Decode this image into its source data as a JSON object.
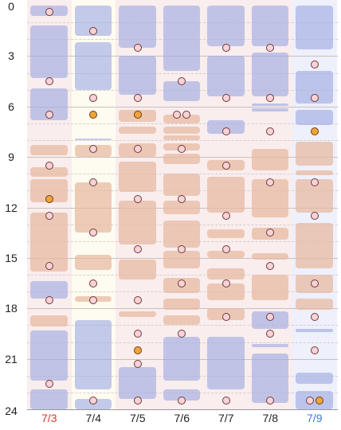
{
  "y_axis": {
    "min": 0,
    "max": 24,
    "labels": [
      "0",
      "3",
      "6",
      "9",
      "12",
      "15",
      "18",
      "21",
      "24"
    ]
  },
  "days": [
    {
      "label": "7/3",
      "color": "#d9362b",
      "shade": "#f9eded",
      "blocks": [
        {
          "s": 0.0,
          "e": 0.6,
          "c": "blue"
        },
        {
          "s": 1.2,
          "e": 4.3,
          "c": "blue"
        },
        {
          "s": 4.9,
          "e": 6.8,
          "c": "blue"
        },
        {
          "s": 8.3,
          "e": 8.9,
          "c": "peach"
        },
        {
          "s": 9.6,
          "e": 10.2,
          "c": "peach"
        },
        {
          "s": 10.3,
          "e": 11.7,
          "c": "peach"
        },
        {
          "s": 12.3,
          "e": 15.8,
          "c": "peach"
        },
        {
          "s": 16.4,
          "e": 17.4,
          "c": "blue"
        },
        {
          "s": 18.4,
          "e": 19.1,
          "c": "peach"
        },
        {
          "s": 19.3,
          "e": 22.3,
          "c": "blue"
        },
        {
          "s": 22.8,
          "e": 24.0,
          "c": "blue"
        }
      ],
      "markers": [
        {
          "v": 0.4,
          "c": "pink"
        },
        {
          "v": 4.5,
          "c": "pink"
        },
        {
          "v": 6.5,
          "c": "pink"
        },
        {
          "v": 9.5,
          "c": "pink"
        },
        {
          "v": 11.5,
          "c": "orange"
        },
        {
          "v": 12.5,
          "c": "pink"
        },
        {
          "v": 15.5,
          "c": "pink"
        },
        {
          "v": 17.5,
          "c": "pink"
        },
        {
          "v": 22.5,
          "c": "pink"
        }
      ]
    },
    {
      "label": "7/4",
      "color": "#222222",
      "shade": "#fefbf1",
      "blocks": [
        {
          "s": 0.0,
          "e": 1.8,
          "c": "blue"
        },
        {
          "s": 2.2,
          "e": 5.0,
          "c": "blue"
        },
        {
          "s": 7.9,
          "e": 8.0,
          "c": "blue"
        },
        {
          "s": 8.3,
          "e": 9.0,
          "c": "peach"
        },
        {
          "s": 10.5,
          "e": 13.5,
          "c": "peach"
        },
        {
          "s": 14.8,
          "e": 15.7,
          "c": "peach"
        },
        {
          "s": 17.3,
          "e": 17.6,
          "c": "peach"
        },
        {
          "s": 18.7,
          "e": 22.8,
          "c": "blue"
        },
        {
          "s": 23.4,
          "e": 24.0,
          "c": "blue"
        }
      ],
      "markers": [
        {
          "v": 1.5,
          "c": "pink"
        },
        {
          "v": 5.5,
          "c": "pink"
        },
        {
          "v": 6.5,
          "c": "orange"
        },
        {
          "v": 8.5,
          "c": "pink"
        },
        {
          "v": 10.5,
          "c": "pink"
        },
        {
          "v": 13.5,
          "c": "pink"
        },
        {
          "v": 16.5,
          "c": "pink"
        },
        {
          "v": 17.5,
          "c": "pink"
        },
        {
          "v": 23.5,
          "c": "pink"
        }
      ]
    },
    {
      "label": "7/5",
      "color": "#222222",
      "shade": "#f9eded",
      "blocks": [
        {
          "s": 0.0,
          "e": 2.5,
          "c": "blue"
        },
        {
          "s": 3.0,
          "e": 5.3,
          "c": "blue"
        },
        {
          "s": 6.2,
          "e": 6.9,
          "c": "peach"
        },
        {
          "s": 7.2,
          "e": 7.6,
          "c": "peach"
        },
        {
          "s": 8.2,
          "e": 9.0,
          "c": "peach"
        },
        {
          "s": 9.3,
          "e": 11.1,
          "c": "peach"
        },
        {
          "s": 11.6,
          "e": 14.2,
          "c": "peach"
        },
        {
          "s": 15.1,
          "e": 16.3,
          "c": "peach"
        },
        {
          "s": 18.2,
          "e": 18.5,
          "c": "peach"
        },
        {
          "s": 21.5,
          "e": 23.4,
          "c": "blue"
        }
      ],
      "markers": [
        {
          "v": 2.5,
          "c": "pink"
        },
        {
          "v": 5.5,
          "c": "pink"
        },
        {
          "v": 6.5,
          "c": "orange"
        },
        {
          "v": 8.5,
          "c": "pink"
        },
        {
          "v": 11.5,
          "c": "pink"
        },
        {
          "v": 14.5,
          "c": "pink"
        },
        {
          "v": 17.5,
          "c": "pink"
        },
        {
          "v": 19.5,
          "c": "pink"
        },
        {
          "v": 20.5,
          "c": "orange"
        },
        {
          "v": 21.3,
          "c": "pink"
        },
        {
          "v": 23.5,
          "c": "pink"
        }
      ]
    },
    {
      "label": "7/6",
      "color": "#222222",
      "shade": "#f9eded",
      "blocks": [
        {
          "s": 0.0,
          "e": 3.9,
          "c": "blue"
        },
        {
          "s": 4.5,
          "e": 5.7,
          "c": "blue"
        },
        {
          "s": 6.5,
          "e": 7.0,
          "c": "peach"
        },
        {
          "s": 7.2,
          "e": 7.6,
          "c": "peach"
        },
        {
          "s": 7.7,
          "e": 8.0,
          "c": "peach"
        },
        {
          "s": 8.2,
          "e": 8.6,
          "c": "peach"
        },
        {
          "s": 8.8,
          "e": 9.4,
          "c": "peach"
        },
        {
          "s": 10.0,
          "e": 11.3,
          "c": "peach"
        },
        {
          "s": 11.6,
          "e": 12.4,
          "c": "peach"
        },
        {
          "s": 12.8,
          "e": 14.4,
          "c": "peach"
        },
        {
          "s": 14.6,
          "e": 15.6,
          "c": "peach"
        },
        {
          "s": 16.2,
          "e": 17.1,
          "c": "peach"
        },
        {
          "s": 17.4,
          "e": 18.1,
          "c": "peach"
        },
        {
          "s": 18.4,
          "e": 19.0,
          "c": "peach"
        },
        {
          "s": 19.7,
          "e": 22.3,
          "c": "blue"
        },
        {
          "s": 22.8,
          "e": 23.5,
          "c": "blue"
        }
      ],
      "markers": [
        {
          "v": 4.5,
          "c": "pink"
        },
        {
          "v": 6.5,
          "c": "pink",
          "dx": -6
        },
        {
          "v": 6.5,
          "c": "pink",
          "dx": 6
        },
        {
          "v": 8.5,
          "c": "pink"
        },
        {
          "v": 11.5,
          "c": "pink"
        },
        {
          "v": 14.5,
          "c": "pink"
        },
        {
          "v": 16.5,
          "c": "pink"
        },
        {
          "v": 19.5,
          "c": "pink"
        },
        {
          "v": 23.5,
          "c": "pink"
        }
      ]
    },
    {
      "label": "7/7",
      "color": "#222222",
      "shade": "#f9eded",
      "blocks": [
        {
          "s": 0.0,
          "e": 2.4,
          "c": "blue"
        },
        {
          "s": 3.0,
          "e": 5.4,
          "c": "blue"
        },
        {
          "s": 6.8,
          "e": 7.6,
          "c": "blue"
        },
        {
          "s": 9.2,
          "e": 9.8,
          "c": "peach"
        },
        {
          "s": 10.2,
          "e": 12.3,
          "c": "peach"
        },
        {
          "s": 13.3,
          "e": 13.8,
          "c": "peach"
        },
        {
          "s": 14.6,
          "e": 15.0,
          "c": "peach"
        },
        {
          "s": 15.6,
          "e": 16.3,
          "c": "peach"
        },
        {
          "s": 16.5,
          "e": 17.5,
          "c": "peach"
        },
        {
          "s": 18.0,
          "e": 18.7,
          "c": "peach"
        },
        {
          "s": 19.7,
          "e": 22.8,
          "c": "blue"
        }
      ],
      "markers": [
        {
          "v": 2.5,
          "c": "pink"
        },
        {
          "v": 5.5,
          "c": "pink"
        },
        {
          "v": 7.5,
          "c": "pink"
        },
        {
          "v": 9.5,
          "c": "pink"
        },
        {
          "v": 12.5,
          "c": "pink"
        },
        {
          "v": 14.5,
          "c": "pink"
        },
        {
          "v": 16.5,
          "c": "pink"
        },
        {
          "v": 18.5,
          "c": "pink"
        },
        {
          "v": 23.5,
          "c": "pink"
        }
      ]
    },
    {
      "label": "7/8",
      "color": "#222222",
      "shade": "#f9eded",
      "blocks": [
        {
          "s": 0.0,
          "e": 2.4,
          "c": "blue"
        },
        {
          "s": 2.8,
          "e": 5.4,
          "c": "blue"
        },
        {
          "s": 5.8,
          "e": 5.95,
          "c": "blue",
          "thin": true
        },
        {
          "s": 6.1,
          "e": 6.3,
          "c": "blue",
          "thin": true
        },
        {
          "s": 8.5,
          "e": 9.8,
          "c": "peach"
        },
        {
          "s": 10.3,
          "e": 12.6,
          "c": "peach"
        },
        {
          "s": 13.2,
          "e": 13.9,
          "c": "peach"
        },
        {
          "s": 14.7,
          "e": 15.1,
          "c": "peach"
        },
        {
          "s": 16.0,
          "e": 17.5,
          "c": "peach"
        },
        {
          "s": 18.2,
          "e": 19.2,
          "c": "blue"
        },
        {
          "s": 20.1,
          "e": 20.3,
          "c": "blue",
          "thin": true
        },
        {
          "s": 20.7,
          "e": 23.6,
          "c": "blue"
        }
      ],
      "markers": [
        {
          "v": 2.5,
          "c": "pink"
        },
        {
          "v": 5.5,
          "c": "pink"
        },
        {
          "v": 7.5,
          "c": "pink"
        },
        {
          "v": 10.5,
          "c": "pink"
        },
        {
          "v": 13.5,
          "c": "pink"
        },
        {
          "v": 15.5,
          "c": "pink"
        },
        {
          "v": 18.5,
          "c": "pink"
        },
        {
          "v": 19.5,
          "c": "pink"
        },
        {
          "v": 23.5,
          "c": "pink"
        }
      ]
    },
    {
      "label": "7/9",
      "color": "#3a7bd5",
      "shade": "#eef0fb",
      "blocks": [
        {
          "s": 0.0,
          "e": 2.6,
          "c": "blue"
        },
        {
          "s": 3.9,
          "e": 5.8,
          "c": "blue"
        },
        {
          "s": 6.2,
          "e": 7.1,
          "c": "blue"
        },
        {
          "s": 8.1,
          "e": 9.5,
          "c": "peach"
        },
        {
          "s": 9.8,
          "e": 10.1,
          "c": "peach"
        },
        {
          "s": 10.3,
          "e": 12.3,
          "c": "peach"
        },
        {
          "s": 12.9,
          "e": 15.6,
          "c": "peach"
        },
        {
          "s": 16.0,
          "e": 17.1,
          "c": "peach"
        },
        {
          "s": 17.4,
          "e": 18.1,
          "c": "peach"
        },
        {
          "s": 19.2,
          "e": 19.4,
          "c": "blue",
          "thin": true
        },
        {
          "s": 21.8,
          "e": 22.5,
          "c": "blue"
        },
        {
          "s": 22.9,
          "e": 24.0,
          "c": "blue"
        }
      ],
      "markers": [
        {
          "v": 3.5,
          "c": "pink"
        },
        {
          "v": 5.5,
          "c": "pink"
        },
        {
          "v": 7.5,
          "c": "orange"
        },
        {
          "v": 10.5,
          "c": "pink"
        },
        {
          "v": 12.5,
          "c": "pink"
        },
        {
          "v": 16.5,
          "c": "pink"
        },
        {
          "v": 18.5,
          "c": "pink"
        },
        {
          "v": 20.5,
          "c": "pink"
        },
        {
          "v": 23.5,
          "c": "pink",
          "dx": -6
        },
        {
          "v": 23.5,
          "c": "orange",
          "dx": 6
        }
      ]
    }
  ]
}
